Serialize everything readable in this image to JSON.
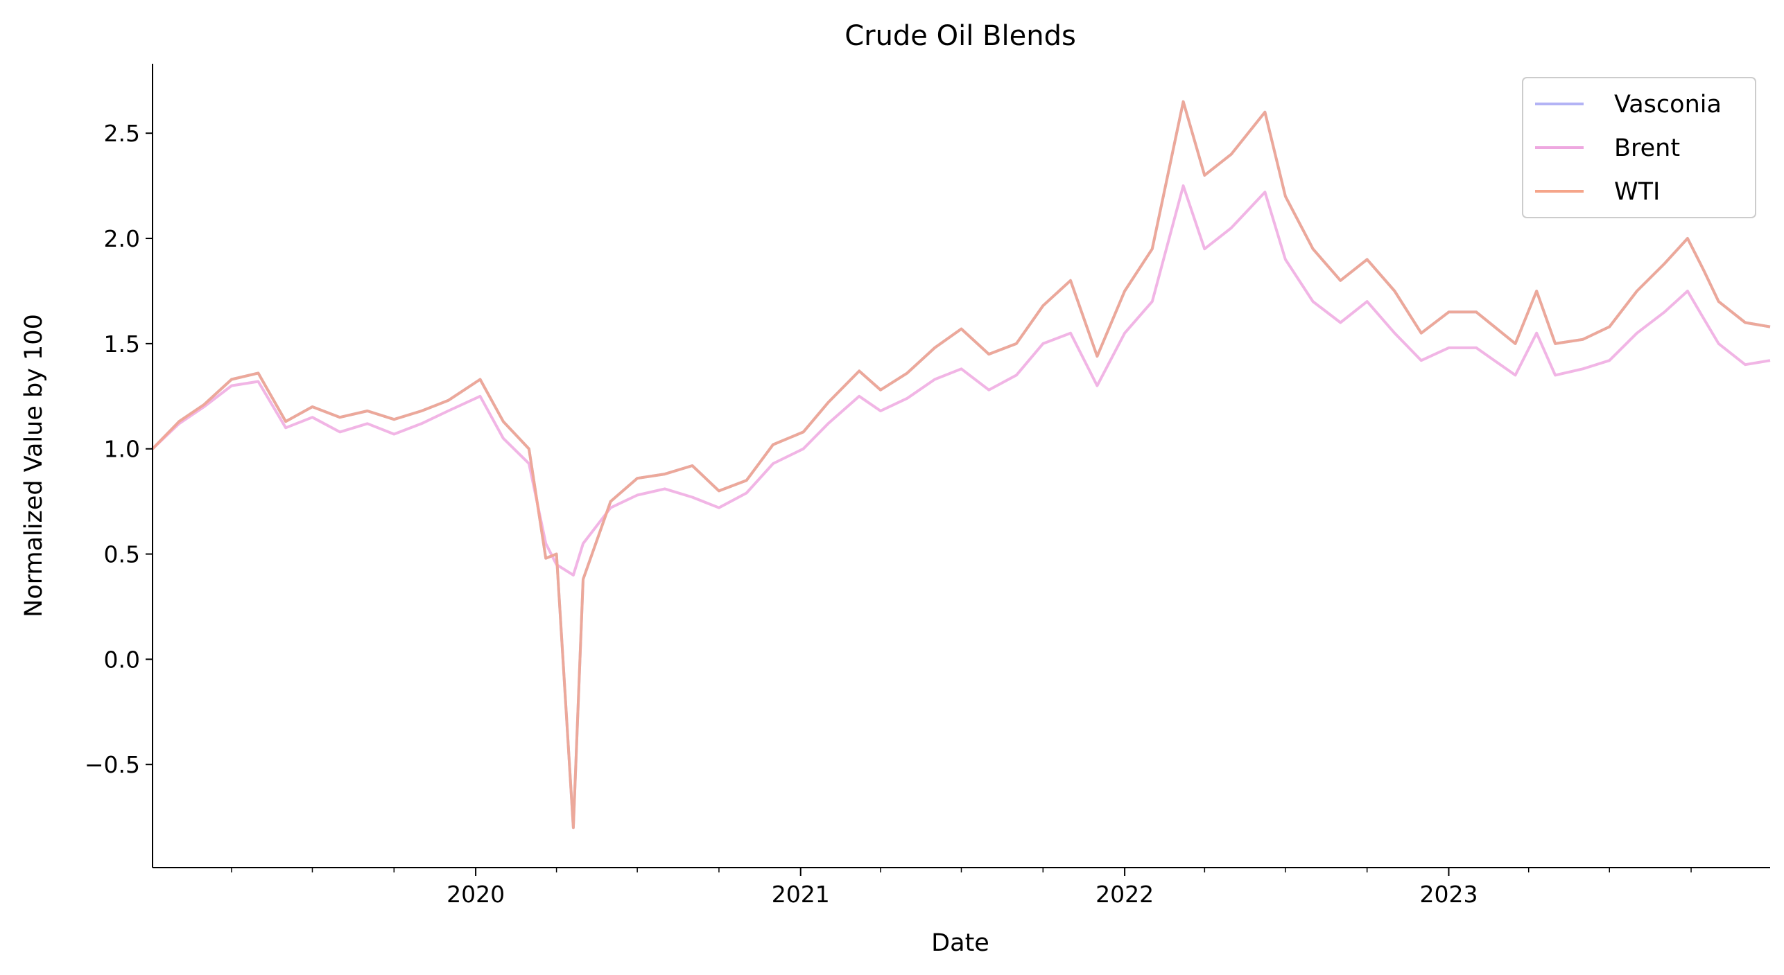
{
  "chart_data": {
    "type": "line",
    "title": "Crude Oil Blends",
    "xlabel": "Date",
    "ylabel": "Normalized Value by 100",
    "xlim": [
      "2019-01-02",
      "2023-12-29"
    ],
    "ylim": [
      -0.99,
      2.83
    ],
    "yticks": [
      -0.5,
      0.0,
      0.5,
      1.0,
      1.5,
      2.0,
      2.5
    ],
    "ytick_labels": [
      "−0.5",
      "0.0",
      "0.5",
      "1.0",
      "1.5",
      "2.0",
      "2.5"
    ],
    "xticks": [
      "2020-01-01",
      "2021-01-01",
      "2022-01-01",
      "2023-01-01"
    ],
    "xtick_labels": [
      "2020",
      "2021",
      "2022",
      "2023"
    ],
    "grid": false,
    "legend": {
      "placement": "top-right"
    },
    "series": [
      {
        "name": "Vasconia",
        "color": "#b3b3f5",
        "points": [
          [
            "2019-01-02",
            1.0
          ],
          [
            "2019-02-01",
            1.13
          ],
          [
            "2019-03-01",
            1.21
          ],
          [
            "2019-04-01",
            1.33
          ],
          [
            "2019-05-01",
            1.36
          ],
          [
            "2019-06-01",
            1.13
          ],
          [
            "2019-07-01",
            1.2
          ],
          [
            "2019-08-01",
            1.15
          ],
          [
            "2019-09-01",
            1.18
          ],
          [
            "2019-10-01",
            1.14
          ],
          [
            "2019-11-01",
            1.18
          ],
          [
            "2019-12-01",
            1.23
          ],
          [
            "2020-01-06",
            1.33
          ],
          [
            "2020-02-01",
            1.13
          ],
          [
            "2020-03-01",
            1.0
          ],
          [
            "2020-03-20",
            0.48
          ],
          [
            "2020-04-01",
            0.5
          ],
          [
            "2020-04-20",
            -0.8
          ],
          [
            "2020-05-01",
            0.38
          ],
          [
            "2020-06-01",
            0.75
          ],
          [
            "2020-07-01",
            0.86
          ],
          [
            "2020-08-01",
            0.88
          ],
          [
            "2020-09-01",
            0.92
          ],
          [
            "2020-10-01",
            0.8
          ],
          [
            "2020-11-01",
            0.85
          ],
          [
            "2020-12-01",
            1.02
          ],
          [
            "2021-01-04",
            1.08
          ],
          [
            "2021-02-01",
            1.22
          ],
          [
            "2021-03-08",
            1.37
          ],
          [
            "2021-04-01",
            1.28
          ],
          [
            "2021-05-01",
            1.36
          ],
          [
            "2021-06-01",
            1.48
          ],
          [
            "2021-07-01",
            1.57
          ],
          [
            "2021-08-01",
            1.45
          ],
          [
            "2021-09-01",
            1.5
          ],
          [
            "2021-10-01",
            1.68
          ],
          [
            "2021-11-01",
            1.8
          ],
          [
            "2021-12-01",
            1.44
          ],
          [
            "2022-01-01",
            1.75
          ],
          [
            "2022-02-01",
            1.95
          ],
          [
            "2022-03-08",
            2.65
          ],
          [
            "2022-04-01",
            2.3
          ],
          [
            "2022-05-01",
            2.4
          ],
          [
            "2022-06-08",
            2.6
          ],
          [
            "2022-07-01",
            2.2
          ],
          [
            "2022-08-01",
            1.95
          ],
          [
            "2022-09-01",
            1.8
          ],
          [
            "2022-10-01",
            1.9
          ],
          [
            "2022-11-01",
            1.75
          ],
          [
            "2022-12-01",
            1.55
          ],
          [
            "2023-01-01",
            1.65
          ],
          [
            "2023-02-01",
            1.65
          ],
          [
            "2023-03-17",
            1.5
          ],
          [
            "2023-04-10",
            1.75
          ],
          [
            "2023-05-01",
            1.5
          ],
          [
            "2023-06-01",
            1.52
          ],
          [
            "2023-07-01",
            1.58
          ],
          [
            "2023-08-01",
            1.75
          ],
          [
            "2023-09-01",
            1.88
          ],
          [
            "2023-09-27",
            2.0
          ],
          [
            "2023-10-15",
            1.85
          ],
          [
            "2023-11-01",
            1.7
          ],
          [
            "2023-12-01",
            1.6
          ],
          [
            "2023-12-29",
            1.58
          ]
        ]
      },
      {
        "name": "Brent",
        "color": "#eea8e0",
        "points": [
          [
            "2019-01-02",
            1.0
          ],
          [
            "2019-02-01",
            1.12
          ],
          [
            "2019-03-01",
            1.2
          ],
          [
            "2019-04-01",
            1.3
          ],
          [
            "2019-05-01",
            1.32
          ],
          [
            "2019-06-01",
            1.1
          ],
          [
            "2019-07-01",
            1.15
          ],
          [
            "2019-08-01",
            1.08
          ],
          [
            "2019-09-01",
            1.12
          ],
          [
            "2019-10-01",
            1.07
          ],
          [
            "2019-11-01",
            1.12
          ],
          [
            "2019-12-01",
            1.18
          ],
          [
            "2020-01-06",
            1.25
          ],
          [
            "2020-02-01",
            1.05
          ],
          [
            "2020-03-01",
            0.93
          ],
          [
            "2020-03-20",
            0.55
          ],
          [
            "2020-04-01",
            0.45
          ],
          [
            "2020-04-20",
            0.4
          ],
          [
            "2020-05-01",
            0.55
          ],
          [
            "2020-06-01",
            0.72
          ],
          [
            "2020-07-01",
            0.78
          ],
          [
            "2020-08-01",
            0.81
          ],
          [
            "2020-09-01",
            0.77
          ],
          [
            "2020-10-01",
            0.72
          ],
          [
            "2020-11-01",
            0.79
          ],
          [
            "2020-12-01",
            0.93
          ],
          [
            "2021-01-04",
            1.0
          ],
          [
            "2021-02-01",
            1.12
          ],
          [
            "2021-03-08",
            1.25
          ],
          [
            "2021-04-01",
            1.18
          ],
          [
            "2021-05-01",
            1.24
          ],
          [
            "2021-06-01",
            1.33
          ],
          [
            "2021-07-01",
            1.38
          ],
          [
            "2021-08-01",
            1.28
          ],
          [
            "2021-09-01",
            1.35
          ],
          [
            "2021-10-01",
            1.5
          ],
          [
            "2021-11-01",
            1.55
          ],
          [
            "2021-12-01",
            1.3
          ],
          [
            "2022-01-01",
            1.55
          ],
          [
            "2022-02-01",
            1.7
          ],
          [
            "2022-03-08",
            2.25
          ],
          [
            "2022-04-01",
            1.95
          ],
          [
            "2022-05-01",
            2.05
          ],
          [
            "2022-06-08",
            2.22
          ],
          [
            "2022-07-01",
            1.9
          ],
          [
            "2022-08-01",
            1.7
          ],
          [
            "2022-09-01",
            1.6
          ],
          [
            "2022-10-01",
            1.7
          ],
          [
            "2022-11-01",
            1.55
          ],
          [
            "2022-12-01",
            1.42
          ],
          [
            "2023-01-01",
            1.48
          ],
          [
            "2023-02-01",
            1.48
          ],
          [
            "2023-03-17",
            1.35
          ],
          [
            "2023-04-10",
            1.55
          ],
          [
            "2023-05-01",
            1.35
          ],
          [
            "2023-06-01",
            1.38
          ],
          [
            "2023-07-01",
            1.42
          ],
          [
            "2023-08-01",
            1.55
          ],
          [
            "2023-09-01",
            1.65
          ],
          [
            "2023-09-27",
            1.75
          ],
          [
            "2023-10-15",
            1.62
          ],
          [
            "2023-11-01",
            1.5
          ],
          [
            "2023-12-01",
            1.4
          ],
          [
            "2023-12-29",
            1.42
          ]
        ]
      },
      {
        "name": "WTI",
        "color": "#f5a58a",
        "points": [
          [
            "2019-01-02",
            1.0
          ],
          [
            "2019-02-01",
            1.13
          ],
          [
            "2019-03-01",
            1.21
          ],
          [
            "2019-04-01",
            1.33
          ],
          [
            "2019-05-01",
            1.36
          ],
          [
            "2019-06-01",
            1.13
          ],
          [
            "2019-07-01",
            1.2
          ],
          [
            "2019-08-01",
            1.15
          ],
          [
            "2019-09-01",
            1.18
          ],
          [
            "2019-10-01",
            1.14
          ],
          [
            "2019-11-01",
            1.18
          ],
          [
            "2019-12-01",
            1.23
          ],
          [
            "2020-01-06",
            1.33
          ],
          [
            "2020-02-01",
            1.13
          ],
          [
            "2020-03-01",
            1.0
          ],
          [
            "2020-03-20",
            0.48
          ],
          [
            "2020-04-01",
            0.5
          ],
          [
            "2020-04-20",
            -0.8
          ],
          [
            "2020-05-01",
            0.38
          ],
          [
            "2020-06-01",
            0.75
          ],
          [
            "2020-07-01",
            0.86
          ],
          [
            "2020-08-01",
            0.88
          ],
          [
            "2020-09-01",
            0.92
          ],
          [
            "2020-10-01",
            0.8
          ],
          [
            "2020-11-01",
            0.85
          ],
          [
            "2020-12-01",
            1.02
          ],
          [
            "2021-01-04",
            1.08
          ],
          [
            "2021-02-01",
            1.22
          ],
          [
            "2021-03-08",
            1.37
          ],
          [
            "2021-04-01",
            1.28
          ],
          [
            "2021-05-01",
            1.36
          ],
          [
            "2021-06-01",
            1.48
          ],
          [
            "2021-07-01",
            1.57
          ],
          [
            "2021-08-01",
            1.45
          ],
          [
            "2021-09-01",
            1.5
          ],
          [
            "2021-10-01",
            1.68
          ],
          [
            "2021-11-01",
            1.8
          ],
          [
            "2021-12-01",
            1.44
          ],
          [
            "2022-01-01",
            1.75
          ],
          [
            "2022-02-01",
            1.95
          ],
          [
            "2022-03-08",
            2.65
          ],
          [
            "2022-04-01",
            2.3
          ],
          [
            "2022-05-01",
            2.4
          ],
          [
            "2022-06-08",
            2.6
          ],
          [
            "2022-07-01",
            2.2
          ],
          [
            "2022-08-01",
            1.95
          ],
          [
            "2022-09-01",
            1.8
          ],
          [
            "2022-10-01",
            1.9
          ],
          [
            "2022-11-01",
            1.75
          ],
          [
            "2022-12-01",
            1.55
          ],
          [
            "2023-01-01",
            1.65
          ],
          [
            "2023-02-01",
            1.65
          ],
          [
            "2023-03-17",
            1.5
          ],
          [
            "2023-04-10",
            1.75
          ],
          [
            "2023-05-01",
            1.5
          ],
          [
            "2023-06-01",
            1.52
          ],
          [
            "2023-07-01",
            1.58
          ],
          [
            "2023-08-01",
            1.75
          ],
          [
            "2023-09-01",
            1.88
          ],
          [
            "2023-09-27",
            2.0
          ],
          [
            "2023-10-15",
            1.85
          ],
          [
            "2023-11-01",
            1.7
          ],
          [
            "2023-12-01",
            1.6
          ],
          [
            "2023-12-29",
            1.58
          ]
        ]
      }
    ]
  }
}
